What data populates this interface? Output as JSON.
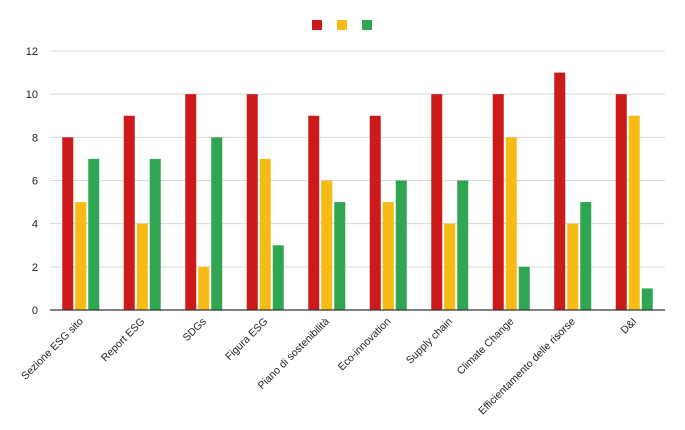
{
  "chart_data": {
    "type": "bar",
    "title": "",
    "xlabel": "",
    "ylabel": "",
    "ylim": [
      0,
      12
    ],
    "yticks": [
      0,
      2,
      4,
      6,
      8,
      10,
      12
    ],
    "grid": true,
    "legend_position": "top-center",
    "categories": [
      "Sezione ESG sito",
      "Report ESG",
      "SDGs",
      "Figura ESG",
      "Piano di sostenibilità",
      "Eco-innovation",
      "Supply chain",
      "Climate Change",
      "Efficientamento delle risorse",
      "D&I"
    ],
    "series": [
      {
        "color": "#cc1a1a",
        "values": [
          8,
          9,
          10,
          10,
          9,
          9,
          10,
          10,
          11,
          10
        ]
      },
      {
        "color": "#f6bb14",
        "values": [
          5,
          4,
          2,
          7,
          6,
          5,
          4,
          8,
          4,
          9
        ]
      },
      {
        "color": "#30a552",
        "values": [
          7,
          7,
          8,
          3,
          5,
          6,
          6,
          2,
          5,
          1
        ]
      }
    ]
  }
}
